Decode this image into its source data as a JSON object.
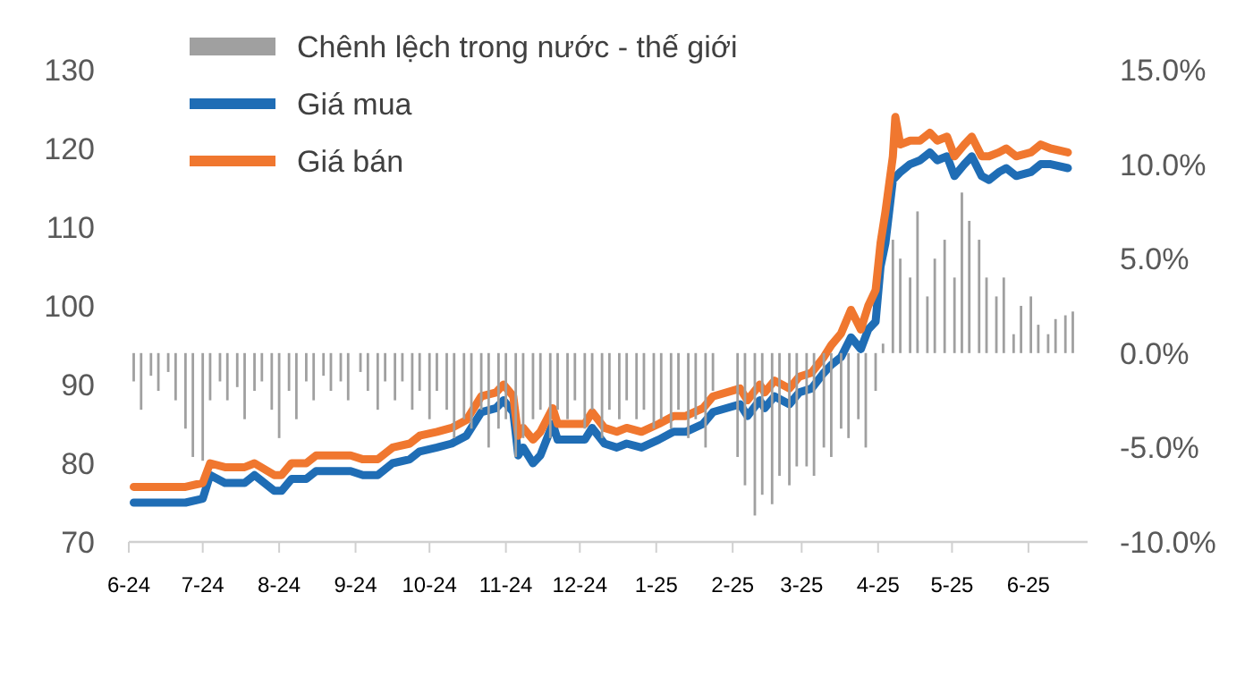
{
  "chart_data": {
    "type": "line",
    "legend": "top left",
    "line_style": "solid",
    "marker": "none",
    "grid": false,
    "xlim": [
      "2024-06-01",
      "2025-06-25"
    ],
    "xticks": [
      {
        "value": "2024-06-01",
        "label": "6-24"
      },
      {
        "value": "2024-07-01",
        "label": "7-24"
      },
      {
        "value": "2024-08-01",
        "label": "8-24"
      },
      {
        "value": "2024-09-01",
        "label": "9-24"
      },
      {
        "value": "2024-10-01",
        "label": "10-24"
      },
      {
        "value": "2024-11-01",
        "label": "11-24"
      },
      {
        "value": "2024-12-01",
        "label": "12-24"
      },
      {
        "value": "2025-01-01",
        "label": "1-25"
      },
      {
        "value": "2025-02-01",
        "label": "2-25"
      },
      {
        "value": "2025-03-01",
        "label": "3-25"
      },
      {
        "value": "2025-04-01",
        "label": "4-25"
      },
      {
        "value": "2025-05-01",
        "label": "5-25"
      },
      {
        "value": "2025-06-01",
        "label": "6-25"
      }
    ],
    "ylim": [
      70,
      130
    ],
    "yticks": [
      70,
      80,
      90,
      100,
      110,
      120,
      130
    ],
    "y2lim": [
      -10,
      15
    ],
    "y2ticks": [
      {
        "value": -10,
        "label": "-10.0%"
      },
      {
        "value": -5,
        "label": "-5.0%"
      },
      {
        "value": 0,
        "label": "0.0%"
      },
      {
        "value": 5,
        "label": "5.0%"
      },
      {
        "value": 10,
        "label": "10.0%"
      },
      {
        "value": 15,
        "label": "15.0%"
      }
    ],
    "series": [
      {
        "name": "Chênh lệch trong nước - thế giới",
        "type": "bar",
        "axis": "y2",
        "color": "#a0a0a0",
        "x": [
          "2024-06-03",
          "2024-06-06",
          "2024-06-10",
          "2024-06-13",
          "2024-06-17",
          "2024-06-20",
          "2024-06-24",
          "2024-06-27",
          "2024-07-01",
          "2024-07-04",
          "2024-07-08",
          "2024-07-11",
          "2024-07-15",
          "2024-07-18",
          "2024-07-22",
          "2024-07-25",
          "2024-07-29",
          "2024-08-01",
          "2024-08-05",
          "2024-08-08",
          "2024-08-12",
          "2024-08-15",
          "2024-08-19",
          "2024-08-22",
          "2024-08-26",
          "2024-08-29",
          "2024-09-03",
          "2024-09-06",
          "2024-09-10",
          "2024-09-13",
          "2024-09-17",
          "2024-09-20",
          "2024-09-24",
          "2024-09-27",
          "2024-10-01",
          "2024-10-04",
          "2024-10-08",
          "2024-10-11",
          "2024-10-15",
          "2024-10-18",
          "2024-10-22",
          "2024-10-25",
          "2024-10-29",
          "2024-11-01",
          "2024-11-05",
          "2024-11-08",
          "2024-11-12",
          "2024-11-15",
          "2024-11-19",
          "2024-11-22",
          "2024-11-26",
          "2024-11-29",
          "2024-12-03",
          "2024-12-06",
          "2024-12-10",
          "2024-12-13",
          "2024-12-17",
          "2024-12-20",
          "2024-12-24",
          "2024-12-27",
          "2024-12-31",
          "2025-01-03",
          "2025-01-07",
          "2025-01-10",
          "2025-01-14",
          "2025-01-17",
          "2025-01-21",
          "2025-01-24",
          "2025-02-03",
          "2025-02-06",
          "2025-02-10",
          "2025-02-13",
          "2025-02-17",
          "2025-02-20",
          "2025-02-24",
          "2025-02-27",
          "2025-03-03",
          "2025-03-06",
          "2025-03-10",
          "2025-03-13",
          "2025-03-17",
          "2025-03-20",
          "2025-03-24",
          "2025-03-27",
          "2025-03-31",
          "2025-04-03",
          "2025-04-07",
          "2025-04-10",
          "2025-04-14",
          "2025-04-17",
          "2025-04-21",
          "2025-04-24",
          "2025-04-28",
          "2025-05-02",
          "2025-05-05",
          "2025-05-08",
          "2025-05-12",
          "2025-05-15",
          "2025-05-19",
          "2025-05-22",
          "2025-05-26",
          "2025-05-29",
          "2025-06-02",
          "2025-06-05",
          "2025-06-09",
          "2025-06-12",
          "2025-06-16",
          "2025-06-19"
        ],
        "values": [
          -1.5,
          -3,
          -1.2,
          -2,
          -1,
          -2.5,
          -4,
          -5.5,
          -5.7,
          -2.5,
          -1.5,
          -2.5,
          -1.8,
          -3.5,
          -2,
          -1.5,
          -3,
          -4.5,
          -2,
          -3.5,
          -1.5,
          -2.5,
          -1.2,
          -2,
          -1.5,
          -2.5,
          -1,
          -2,
          -3,
          -1.5,
          -2.5,
          -1.5,
          -3,
          -2,
          -3.5,
          -2,
          -3,
          -4.5,
          -3.5,
          -4,
          -3,
          -5,
          -4,
          -3.5,
          -5.5,
          -4.5,
          -3.5,
          -3,
          -4.5,
          -3,
          -3.5,
          -2.5,
          -4,
          -3,
          -4.5,
          -3,
          -3.5,
          -2.5,
          -3.5,
          -3,
          -4,
          -3.5,
          -4,
          -3,
          -4.5,
          -3.5,
          -5,
          -2,
          -5.5,
          -7,
          -8.6,
          -7.5,
          -8,
          -6.5,
          -7,
          -6,
          -6,
          -6.5,
          -5,
          -5.5,
          -4,
          -4.5,
          -3.5,
          -5,
          -2,
          0.5,
          6,
          5,
          4,
          7.5,
          3,
          5,
          6,
          4,
          8.5,
          7,
          6,
          4,
          3,
          4,
          1,
          2.5,
          3,
          1.5,
          1,
          1.8,
          2,
          2.2
        ]
      },
      {
        "name": "Giá mua",
        "color": "#1f6db5",
        "x": [
          "2024-06-03",
          "2024-06-24",
          "2024-07-01",
          "2024-07-04",
          "2024-07-10",
          "2024-07-18",
          "2024-07-22",
          "2024-07-30",
          "2024-08-02",
          "2024-08-06",
          "2024-08-12",
          "2024-08-16",
          "2024-08-30",
          "2024-09-04",
          "2024-09-10",
          "2024-09-16",
          "2024-09-23",
          "2024-09-27",
          "2024-10-04",
          "2024-10-10",
          "2024-10-16",
          "2024-10-22",
          "2024-10-28",
          "2024-10-31",
          "2024-11-04",
          "2024-11-06",
          "2024-11-08",
          "2024-11-12",
          "2024-11-15",
          "2024-11-20",
          "2024-11-22",
          "2024-11-27",
          "2024-12-03",
          "2024-12-06",
          "2024-12-11",
          "2024-12-16",
          "2024-12-20",
          "2024-12-26",
          "2025-01-02",
          "2025-01-08",
          "2025-01-13",
          "2025-01-20",
          "2025-01-24",
          "2025-02-04",
          "2025-02-07",
          "2025-02-12",
          "2025-02-14",
          "2025-02-18",
          "2025-02-24",
          "2025-02-28",
          "2025-03-05",
          "2025-03-10",
          "2025-03-13",
          "2025-03-17",
          "2025-03-21",
          "2025-03-25",
          "2025-03-28",
          "2025-03-31",
          "2025-04-02",
          "2025-04-04",
          "2025-04-07",
          "2025-04-10",
          "2025-04-14",
          "2025-04-18",
          "2025-04-22",
          "2025-04-25",
          "2025-04-29",
          "2025-05-02",
          "2025-05-06",
          "2025-05-09",
          "2025-05-13",
          "2025-05-16",
          "2025-05-20",
          "2025-05-23",
          "2025-05-27",
          "2025-06-02",
          "2025-06-06",
          "2025-06-10",
          "2025-06-17"
        ],
        "values": [
          75,
          75,
          75.5,
          78.5,
          77.5,
          77.5,
          78.5,
          76.5,
          76.5,
          78,
          78,
          79,
          79,
          78.5,
          78.5,
          80,
          80.5,
          81.5,
          82,
          82.5,
          83.5,
          86.5,
          87,
          88,
          86.5,
          81,
          82,
          80,
          81,
          85,
          83,
          83,
          83,
          84.5,
          82.5,
          82,
          82.5,
          82,
          83,
          84,
          84,
          85,
          86.5,
          87.5,
          86,
          88,
          87,
          88.5,
          87.5,
          89,
          89.5,
          91.5,
          92.5,
          93.5,
          96,
          94.5,
          97,
          98,
          105,
          108,
          116,
          117,
          118,
          118.5,
          119.5,
          118.5,
          119,
          116.5,
          118,
          119,
          116.5,
          116,
          117,
          117.5,
          116.5,
          117,
          118,
          118,
          117.5
        ]
      },
      {
        "name": "Giá bán",
        "color": "#f0772f",
        "x": [
          "2024-06-03",
          "2024-06-24",
          "2024-07-01",
          "2024-07-04",
          "2024-07-10",
          "2024-07-18",
          "2024-07-22",
          "2024-07-30",
          "2024-08-02",
          "2024-08-06",
          "2024-08-12",
          "2024-08-16",
          "2024-08-30",
          "2024-09-04",
          "2024-09-10",
          "2024-09-16",
          "2024-09-23",
          "2024-09-27",
          "2024-10-04",
          "2024-10-10",
          "2024-10-16",
          "2024-10-22",
          "2024-10-28",
          "2024-10-31",
          "2024-11-04",
          "2024-11-06",
          "2024-11-08",
          "2024-11-12",
          "2024-11-15",
          "2024-11-20",
          "2024-11-22",
          "2024-11-27",
          "2024-12-03",
          "2024-12-06",
          "2024-12-11",
          "2024-12-16",
          "2024-12-20",
          "2024-12-26",
          "2025-01-02",
          "2025-01-08",
          "2025-01-13",
          "2025-01-20",
          "2025-01-24",
          "2025-02-04",
          "2025-02-07",
          "2025-02-12",
          "2025-02-14",
          "2025-02-18",
          "2025-02-24",
          "2025-02-28",
          "2025-03-05",
          "2025-03-10",
          "2025-03-13",
          "2025-03-17",
          "2025-03-21",
          "2025-03-25",
          "2025-03-28",
          "2025-03-31",
          "2025-04-02",
          "2025-04-04",
          "2025-04-07",
          "2025-04-08",
          "2025-04-10",
          "2025-04-14",
          "2025-04-18",
          "2025-04-22",
          "2025-04-25",
          "2025-04-29",
          "2025-05-02",
          "2025-05-06",
          "2025-05-09",
          "2025-05-13",
          "2025-05-16",
          "2025-05-20",
          "2025-05-23",
          "2025-05-27",
          "2025-06-02",
          "2025-06-06",
          "2025-06-10",
          "2025-06-17"
        ],
        "values": [
          77,
          77,
          77.5,
          80,
          79.5,
          79.5,
          80,
          78.5,
          78.5,
          80,
          80,
          81,
          81,
          80.5,
          80.5,
          82,
          82.5,
          83.5,
          84,
          84.5,
          85.5,
          88.5,
          89,
          90,
          88.5,
          83.5,
          84.5,
          83,
          84,
          87,
          85,
          85,
          85,
          86.5,
          84.5,
          84,
          84.5,
          84,
          85,
          86,
          86,
          87,
          88.5,
          89.5,
          88,
          90,
          89,
          90.5,
          89.5,
          91,
          91.5,
          93.5,
          95,
          96.5,
          99.5,
          97,
          100,
          102,
          108,
          112,
          119,
          124,
          120.5,
          121,
          121,
          122,
          121,
          121.5,
          119,
          120.5,
          121.5,
          119,
          119,
          119.5,
          120,
          119,
          119.5,
          120.5,
          120,
          119.5
        ]
      }
    ]
  }
}
